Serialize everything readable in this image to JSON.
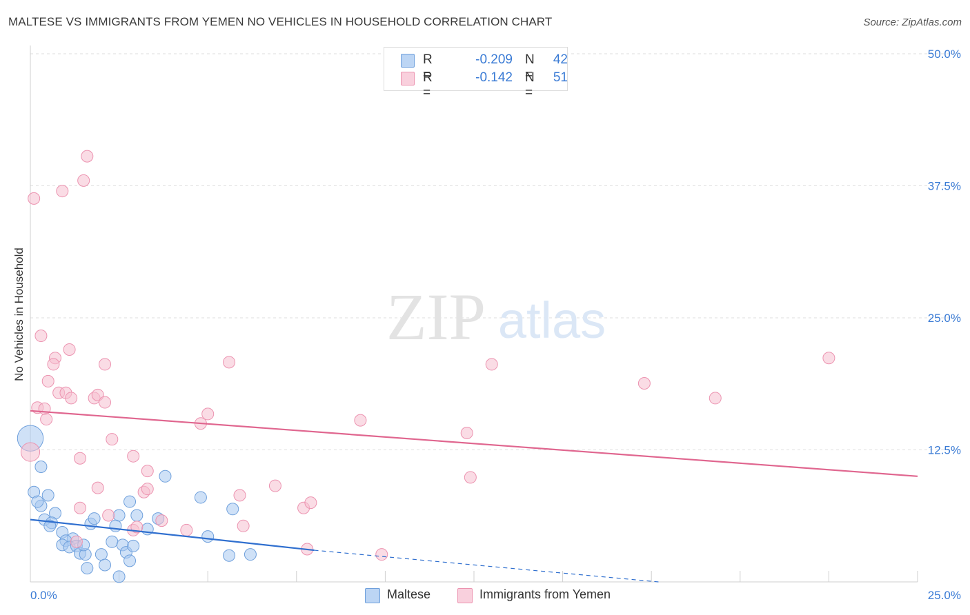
{
  "header": {
    "title": "MALTESE VS IMMIGRANTS FROM YEMEN NO VEHICLES IN HOUSEHOLD CORRELATION CHART",
    "source": "Source: ZipAtlas.com"
  },
  "watermark": {
    "zip": "ZIP",
    "atlas": "atlas"
  },
  "legend": {
    "rows": [
      {
        "r_label": "R =",
        "r_value": "-0.209",
        "n_label": "N =",
        "n_value": "42"
      },
      {
        "r_label": "R =",
        "r_value": "-0.142",
        "n_label": "N =",
        "n_value": "51"
      }
    ]
  },
  "bottom_legend": {
    "maltese": "Maltese",
    "yemen": "Immigrants from Yemen"
  },
  "chart_data": {
    "type": "scatter",
    "title": "MALTESE VS IMMIGRANTS FROM YEMEN NO VEHICLES IN HOUSEHOLD CORRELATION CHART",
    "xlabel": "",
    "ylabel": "No Vehicles in Household",
    "xlim": [
      0,
      25
    ],
    "ylim": [
      0,
      50
    ],
    "x_tick_labels": [
      "0.0%",
      "25.0%"
    ],
    "y_tick_labels": [
      "12.5%",
      "25.0%",
      "37.5%",
      "50.0%"
    ],
    "y_ticks": [
      12.5,
      25,
      37.5,
      50
    ],
    "grid": true,
    "colors": {
      "maltese_fill": "#a8c8f0",
      "maltese_stroke": "#6fa0dc",
      "maltese_line": "#2f6fcf",
      "yemen_fill": "#f6bfd0",
      "yemen_stroke": "#ec93b0",
      "yemen_line": "#e0668f",
      "axis_label": "#3a7bd5"
    },
    "series": [
      {
        "name": "Maltese",
        "trend": {
          "x0": 0,
          "y0": 5.9,
          "x1": 8,
          "y1": 3.0,
          "dash_to_x": 17.7,
          "dash_to_y": 0
        },
        "points": [
          [
            0.0,
            13.6,
            2.2
          ],
          [
            0.3,
            10.9,
            1
          ],
          [
            0.1,
            8.5,
            1
          ],
          [
            0.5,
            8.2,
            1
          ],
          [
            0.3,
            7.2,
            1
          ],
          [
            0.2,
            7.6,
            1
          ],
          [
            0.7,
            6.5,
            1
          ],
          [
            0.4,
            5.9,
            1
          ],
          [
            0.6,
            5.6,
            1
          ],
          [
            0.55,
            5.3,
            1
          ],
          [
            0.9,
            4.7,
            1
          ],
          [
            1.2,
            4.1,
            1
          ],
          [
            1.0,
            3.9,
            1
          ],
          [
            0.9,
            3.5,
            1
          ],
          [
            1.1,
            3.3,
            1
          ],
          [
            1.3,
            3.4,
            1
          ],
          [
            1.4,
            2.7,
            1
          ],
          [
            1.55,
            2.6,
            1
          ],
          [
            1.7,
            5.5,
            1
          ],
          [
            1.5,
            3.5,
            1
          ],
          [
            1.8,
            6.0,
            1
          ],
          [
            2.3,
            3.8,
            1
          ],
          [
            2.0,
            2.6,
            1
          ],
          [
            1.6,
            1.3,
            1
          ],
          [
            2.1,
            1.6,
            1
          ],
          [
            2.5,
            6.3,
            1
          ],
          [
            2.8,
            7.6,
            1
          ],
          [
            2.4,
            5.3,
            1
          ],
          [
            2.6,
            3.5,
            1
          ],
          [
            2.7,
            2.8,
            1
          ],
          [
            2.9,
            3.4,
            1
          ],
          [
            2.5,
            0.5,
            1
          ],
          [
            2.8,
            2.0,
            1
          ],
          [
            3.3,
            5.0,
            1
          ],
          [
            3.6,
            6.0,
            1
          ],
          [
            3.8,
            10.0,
            1
          ],
          [
            4.8,
            8.0,
            1
          ],
          [
            5.0,
            4.3,
            1
          ],
          [
            5.7,
            6.9,
            1
          ],
          [
            5.6,
            2.5,
            1
          ],
          [
            6.2,
            2.6,
            1
          ],
          [
            3.0,
            6.3,
            1
          ]
        ]
      },
      {
        "name": "Immigrants from Yemen",
        "trend": {
          "x0": 0,
          "y0": 16.2,
          "x1": 25,
          "y1": 10.0
        },
        "points": [
          [
            0.1,
            36.3,
            1
          ],
          [
            0.9,
            37.0,
            1
          ],
          [
            1.5,
            38.0,
            1
          ],
          [
            1.6,
            40.3,
            1
          ],
          [
            0.3,
            23.3,
            1
          ],
          [
            1.1,
            22.0,
            1
          ],
          [
            0.7,
            21.2,
            1
          ],
          [
            0.65,
            20.6,
            1
          ],
          [
            2.1,
            20.6,
            1
          ],
          [
            0.5,
            19.0,
            1
          ],
          [
            0.8,
            17.9,
            1
          ],
          [
            1.0,
            17.9,
            1
          ],
          [
            1.15,
            17.4,
            1
          ],
          [
            1.8,
            17.4,
            1
          ],
          [
            1.9,
            17.7,
            1
          ],
          [
            2.1,
            17.0,
            1
          ],
          [
            0.2,
            16.5,
            1
          ],
          [
            0.4,
            16.4,
            1
          ],
          [
            0.45,
            15.4,
            1
          ],
          [
            2.3,
            13.5,
            1
          ],
          [
            1.4,
            11.7,
            1
          ],
          [
            2.9,
            11.9,
            1
          ],
          [
            3.3,
            10.5,
            1
          ],
          [
            1.9,
            8.9,
            1
          ],
          [
            3.2,
            8.5,
            1
          ],
          [
            3.3,
            8.8,
            1
          ],
          [
            1.4,
            7.0,
            1
          ],
          [
            2.2,
            6.3,
            1
          ],
          [
            3.7,
            5.8,
            1
          ],
          [
            2.9,
            4.9,
            1
          ],
          [
            3.0,
            5.2,
            1
          ],
          [
            1.3,
            3.8,
            1
          ],
          [
            4.4,
            4.9,
            1
          ],
          [
            4.8,
            15.0,
            1
          ],
          [
            5.0,
            15.9,
            1
          ],
          [
            5.6,
            20.8,
            1
          ],
          [
            5.9,
            8.2,
            1
          ],
          [
            6.0,
            5.3,
            1
          ],
          [
            6.9,
            9.1,
            1
          ],
          [
            7.7,
            7.0,
            1
          ],
          [
            7.9,
            7.5,
            1
          ],
          [
            7.8,
            3.1,
            1
          ],
          [
            9.3,
            15.3,
            1
          ],
          [
            9.9,
            2.6,
            1
          ],
          [
            12.3,
            14.1,
            1
          ],
          [
            12.4,
            9.9,
            1
          ],
          [
            13.0,
            20.6,
            1
          ],
          [
            17.3,
            18.8,
            1
          ],
          [
            19.3,
            17.4,
            1
          ],
          [
            22.5,
            21.2,
            1
          ],
          [
            0.0,
            12.3,
            1.6
          ]
        ]
      }
    ]
  }
}
